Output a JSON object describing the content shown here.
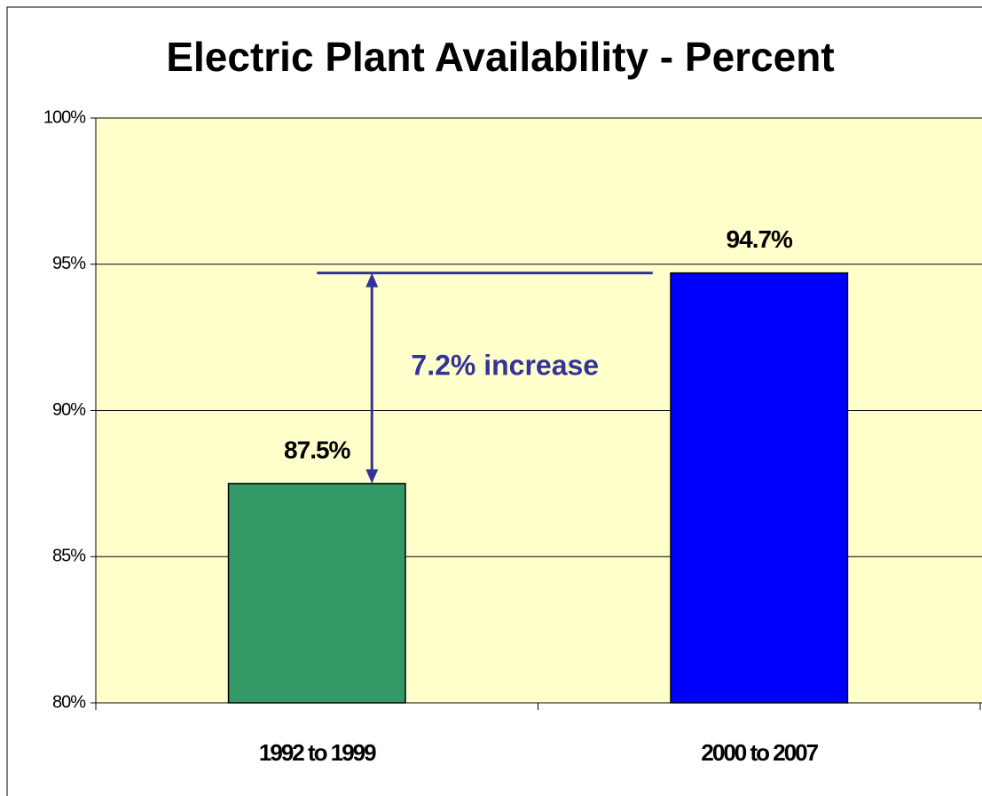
{
  "chart_data": {
    "type": "bar",
    "title": "Electric Plant Availability - Percent",
    "categories": [
      "1992 to 1999",
      "2000 to 2007"
    ],
    "values": [
      87.5,
      94.7
    ],
    "value_labels": [
      "87.5%",
      "94.7%"
    ],
    "colors": [
      "#339966",
      "#0000ff"
    ],
    "ylim": [
      80,
      100
    ],
    "yticks": [
      {
        "value": 80,
        "label": "80%"
      },
      {
        "value": 85,
        "label": "85%"
      },
      {
        "value": 90,
        "label": "90%"
      },
      {
        "value": 95,
        "label": "95%"
      },
      {
        "value": 100,
        "label": "100%"
      }
    ],
    "grid": true,
    "annotation": "7.2% increase"
  }
}
